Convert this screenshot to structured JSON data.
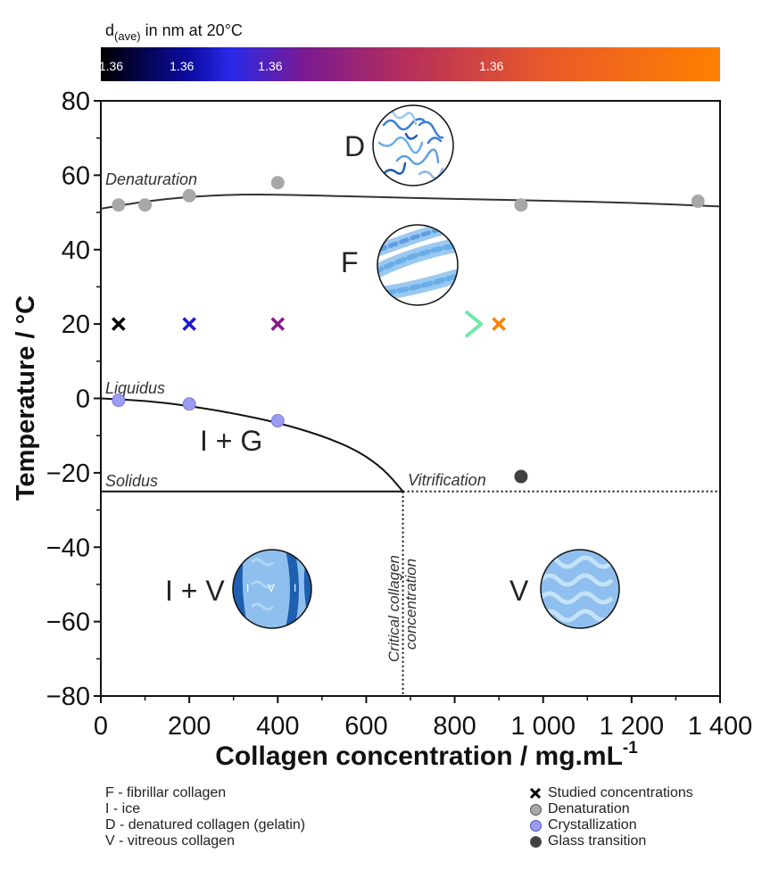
{
  "colorbar": {
    "title_main": "d",
    "title_sub": "(ave)",
    "title_rest": " in nm at 20°C",
    "ticks": [
      {
        "value": 40,
        "label": "1.36",
        "color": "#000000"
      },
      {
        "value": 200,
        "label": "1.36",
        "color": "#1f1fe6"
      },
      {
        "value": 400,
        "label": "1.36",
        "color": "#8a1a87"
      },
      {
        "value": 900,
        "label": "1.36",
        "color": "#ff8000"
      }
    ],
    "gradient_stops": [
      {
        "pos": 0.0,
        "color": "#000000"
      },
      {
        "pos": 0.14,
        "color": "#0a0aa0"
      },
      {
        "pos": 0.21,
        "color": "#2a2ae8"
      },
      {
        "pos": 0.33,
        "color": "#7a1a90"
      },
      {
        "pos": 0.5,
        "color": "#b8305a"
      },
      {
        "pos": 0.72,
        "color": "#e85a2a"
      },
      {
        "pos": 1.0,
        "color": "#ff8000"
      }
    ]
  },
  "chart_data": {
    "type": "scatter",
    "xlabel_main": "Collagen concentration / mg.mL",
    "xlabel_sup": "-1",
    "ylabel": "Temperature / °C",
    "xlim": [
      0,
      1400
    ],
    "ylim": [
      -80,
      80
    ],
    "x_ticks": [
      0,
      200,
      400,
      600,
      800,
      1000,
      1200,
      1400
    ],
    "x_tick_labels": [
      "0",
      "200",
      "400",
      "600",
      "800",
      "1 000",
      "1 200",
      "1 400"
    ],
    "y_ticks": [
      80,
      60,
      40,
      20,
      0,
      -20,
      -40,
      -60,
      -80
    ],
    "y_tick_labels": [
      "80",
      "60",
      "40",
      "20",
      "0",
      "−20",
      "−40",
      "−60",
      "−80"
    ],
    "series": [
      {
        "name": "Denaturation",
        "color": "#a8a8a8",
        "points": [
          [
            40,
            52
          ],
          [
            100,
            52
          ],
          [
            200,
            54.5
          ],
          [
            400,
            58
          ],
          [
            950,
            52
          ],
          [
            1350,
            53
          ]
        ]
      },
      {
        "name": "Crystallization",
        "color": "#9c9cf0",
        "points": [
          [
            40,
            -0.5
          ],
          [
            200,
            -1.5
          ],
          [
            400,
            -6
          ]
        ]
      },
      {
        "name": "Glass transition",
        "color": "#404040",
        "points": [
          [
            950,
            -21
          ]
        ]
      }
    ],
    "studied": [
      {
        "x": 40,
        "y": 20,
        "color": "#000000"
      },
      {
        "x": 200,
        "y": 20,
        "color": "#1a1ad6"
      },
      {
        "x": 400,
        "y": 20,
        "color": "#8a1a87"
      },
      {
        "x": 900,
        "y": 20,
        "color": "#ff8000"
      }
    ],
    "denaturation_curve": [
      [
        0,
        51
      ],
      [
        100,
        53
      ],
      [
        200,
        54.2
      ],
      [
        300,
        54.8
      ],
      [
        400,
        54.8
      ],
      [
        600,
        54.2
      ],
      [
        800,
        53.6
      ],
      [
        1000,
        53.2
      ],
      [
        1200,
        52.6
      ],
      [
        1400,
        51.6
      ]
    ],
    "liquidus_curve": [
      [
        0,
        0
      ],
      [
        100,
        -0.6
      ],
      [
        200,
        -2
      ],
      [
        300,
        -4
      ],
      [
        400,
        -6.5
      ],
      [
        500,
        -10
      ],
      [
        580,
        -14
      ],
      [
        640,
        -19
      ],
      [
        683,
        -25
      ]
    ],
    "solidus_y": -25,
    "critical_x": 683,
    "arrow": {
      "x_start": 40,
      "x_end": 860,
      "y": 20,
      "color_start": "#6fe8a8",
      "color_end": "#2ea86a"
    },
    "curve_labels": {
      "denaturation": "Denaturation",
      "liquidus": "Liquidus",
      "solidus": "Solidus",
      "vitrification": "Vitrification",
      "critical_line1": "Critical collagen",
      "critical_line2": "concentration"
    },
    "phase_labels": {
      "d": "D",
      "f": "F",
      "ig": "I + G",
      "iv": "I + V",
      "v": "V"
    },
    "inset_labels": {
      "i": "I",
      "v": "V"
    }
  },
  "legend_left": [
    "F - fibrillar collagen",
    "I - ice",
    "D - denatured collagen (gelatin)",
    "V - vitreous collagen"
  ],
  "legend_right": [
    {
      "symbol": "cross",
      "label": "Studied concentrations",
      "color": "#000000"
    },
    {
      "symbol": "dot",
      "label": "Denaturation",
      "color": "#a8a8a8"
    },
    {
      "symbol": "dot",
      "label": "Crystallization",
      "color": "#9c9cf0"
    },
    {
      "symbol": "dot",
      "label": "Glass transition",
      "color": "#404040"
    }
  ]
}
